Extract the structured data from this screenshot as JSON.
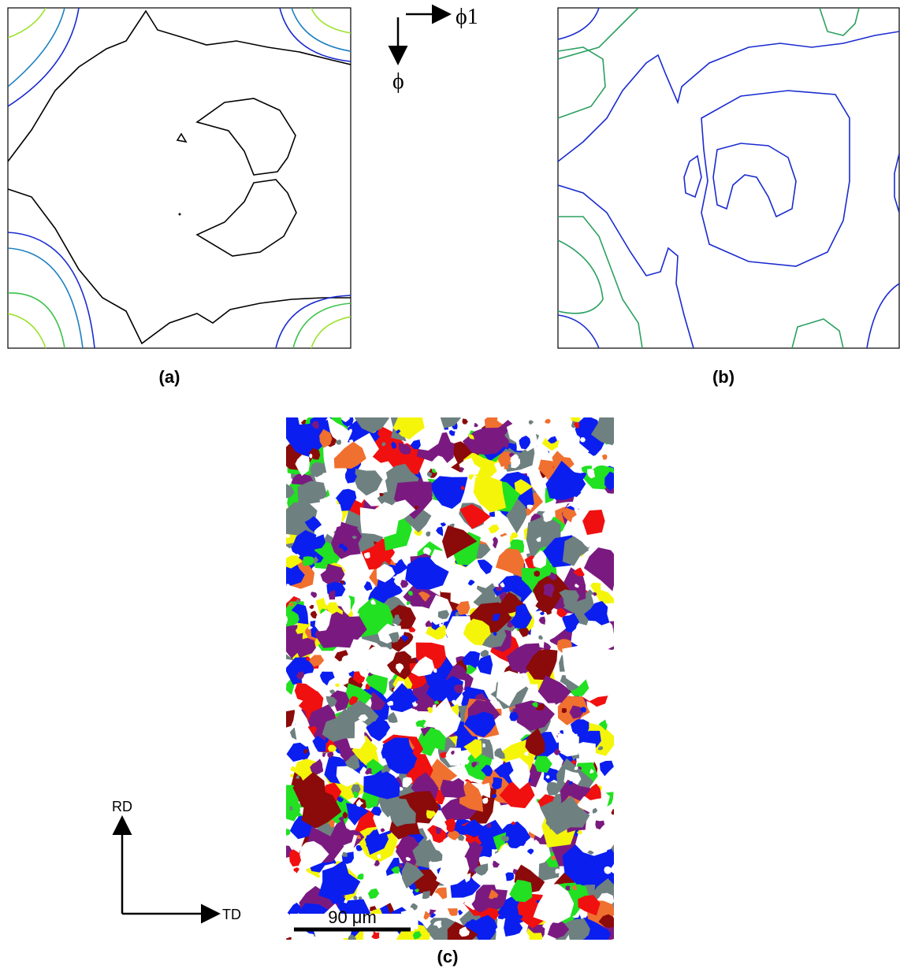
{
  "panels": {
    "a": {
      "label": "(a)"
    },
    "b": {
      "label": "(b)"
    },
    "c": {
      "label": "(c)",
      "scale_bar": "90 μm"
    }
  },
  "euler_axes": {
    "horizontal": "ϕ1",
    "vertical": "ϕ"
  },
  "sample_axes": {
    "vertical": "RD",
    "horizontal": "TD"
  }
}
